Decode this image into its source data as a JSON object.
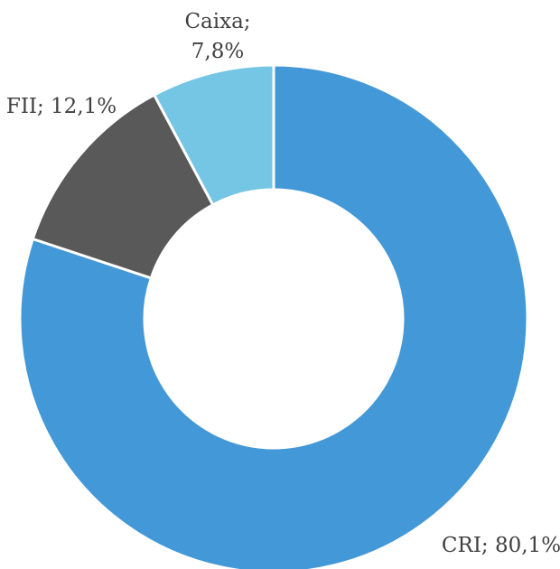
{
  "chart_data": {
    "type": "donut",
    "values": [
      80.1,
      12.1,
      7.8
    ],
    "value_labels": [
      "CRI; 80,1%",
      "FII; 12,1%",
      "Caixa; 7,8%"
    ],
    "colors": [
      "#4398d7",
      "#595959",
      "#75c5e5"
    ]
  }
}
